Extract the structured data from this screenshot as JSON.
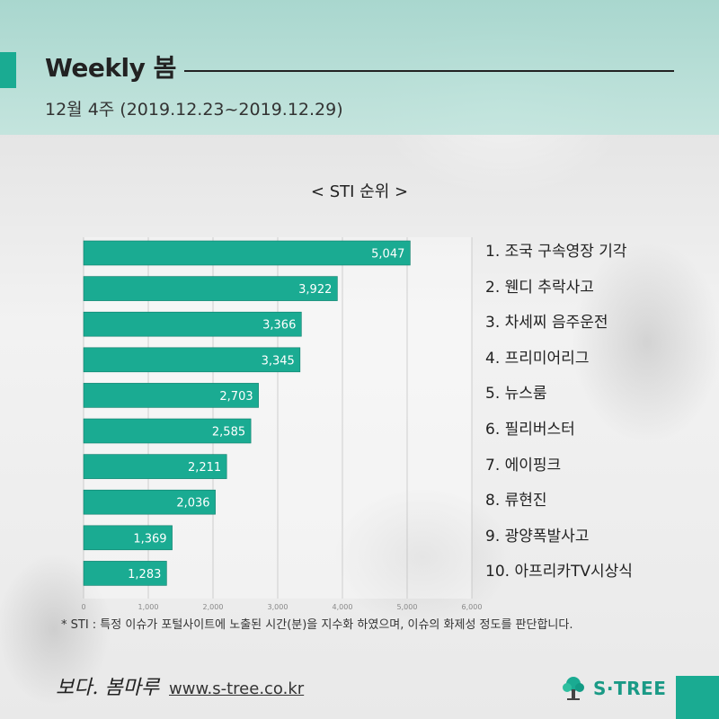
{
  "header": {
    "title": "Weekly 봄",
    "subtitle": "12월 4주 (2019.12.23~2019.12.29)"
  },
  "chart_title": "< STI 순위 >",
  "chart_data": {
    "type": "bar",
    "orientation": "horizontal",
    "categories": [
      "조국 구속영장 기각",
      "웬디 추락사고",
      "차세찌 음주운전",
      "프리미어리그",
      "뉴스룸",
      "필리버스터",
      "에이핑크",
      "류현진",
      "광양폭발사고",
      "아프리카TV시상식"
    ],
    "values": [
      5047,
      3922,
      3366,
      3345,
      2703,
      2585,
      2211,
      2036,
      1369,
      1283
    ],
    "value_labels": [
      "5,047",
      "3,922",
      "3,366",
      "3,345",
      "2,703",
      "2,585",
      "2,211",
      "2,036",
      "1,369",
      "1,283"
    ],
    "xlim": [
      0,
      6000
    ],
    "xticks": [
      "0",
      "1,000",
      "2,000",
      "3,000",
      "4,000",
      "5,000",
      "6,000"
    ],
    "grid": true,
    "bar_color": "#1aab92"
  },
  "ranking": [
    "1. 조국 구속영장 기각",
    "2. 웬디 추락사고",
    "3. 차세찌 음주운전",
    "4. 프리미어리그",
    "5. 뉴스룸",
    "6. 필리버스터",
    "7. 에이핑크",
    "8. 류현진",
    "9. 광양폭발사고",
    "10. 아프리카TV시상식"
  ],
  "footnote": "* STI : 특정 이슈가 포털사이트에 노출된 시간(분)을 지수화 하였으며, 이슈의 화제성 정도를 판단합니다.",
  "footer": {
    "brand": "보다. 봄마루",
    "url": "www.s-tree.co.kr",
    "logo_text": "S·TREE"
  },
  "colors": {
    "accent": "#1aab92",
    "header_bg": "#a8dad0",
    "logo_text": "#1a9a86"
  },
  "icons": {
    "logo": "tree-icon"
  }
}
